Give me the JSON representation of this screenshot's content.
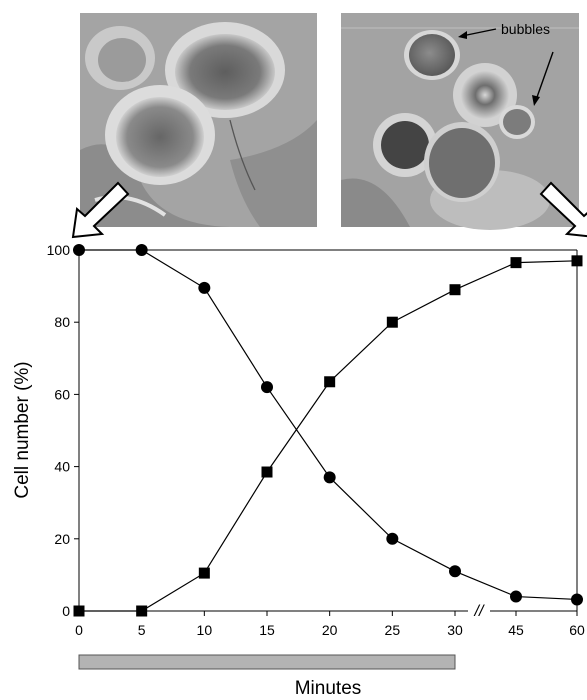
{
  "chart_data": {
    "type": "line",
    "xlabel": "Minutes",
    "ylabel": "Cell number (%)",
    "ylim": [
      0,
      100
    ],
    "yticks": [
      "0",
      "20",
      "40",
      "60",
      "80",
      "100"
    ],
    "xticks": [
      "0",
      "5",
      "10",
      "15",
      "20",
      "25",
      "30",
      "45",
      "60"
    ],
    "x_axis_break_symbol": "//",
    "grid": false,
    "series": [
      {
        "marker": "circle",
        "color": "#000000",
        "x": [
          0,
          5,
          10,
          15,
          20,
          25,
          30,
          45,
          60
        ],
        "values": [
          100,
          100,
          89.5,
          62,
          37,
          20,
          11,
          4,
          3.2
        ]
      },
      {
        "marker": "square",
        "color": "#000000",
        "x": [
          0,
          5,
          10,
          15,
          20,
          25,
          30,
          45,
          60
        ],
        "values": [
          0,
          0,
          10.5,
          38.5,
          63.5,
          80,
          89,
          96.5,
          97
        ]
      }
    ],
    "annotations": [
      {
        "text": "bubbles"
      }
    ],
    "treatment_bar": {
      "from": 0,
      "to": 30,
      "color": "#b3b3b3"
    }
  },
  "colors": {
    "marker": "#000000",
    "treatment_bar": "#b3b3b3",
    "micrograph_tone": "#9a9a9a"
  }
}
